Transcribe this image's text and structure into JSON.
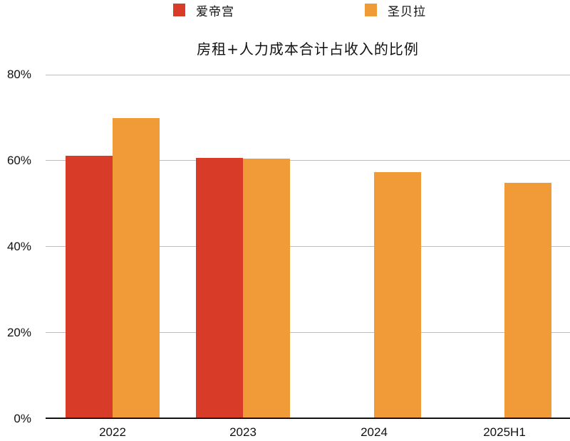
{
  "chart_data": {
    "type": "bar",
    "title": "房租+人力成本合计占收入的比例",
    "xlabel": "",
    "ylabel": "",
    "ylim": [
      0,
      80
    ],
    "yticks": [
      "0%",
      "20%",
      "40%",
      "60%",
      "80%"
    ],
    "grid": true,
    "legend_position": "top",
    "categories": [
      "2022",
      "2023",
      "2024",
      "2025H1"
    ],
    "series": [
      {
        "name": "爱帝宫",
        "color": "#D83B27",
        "values": [
          61.1,
          60.6,
          null,
          null
        ]
      },
      {
        "name": "圣贝拉",
        "color": "#F09B38",
        "values": [
          69.9,
          60.4,
          57.3,
          54.8
        ]
      }
    ]
  },
  "legend": {
    "items": [
      {
        "label": "爱帝宫",
        "color": "#D83B27"
      },
      {
        "label": "圣贝拉",
        "color": "#F09B38"
      }
    ]
  },
  "axes": {
    "y_labels": [
      "80%",
      "60%",
      "40%",
      "20%",
      "0%"
    ],
    "x_labels": [
      "2022",
      "2023",
      "2024",
      "2025H1"
    ]
  }
}
